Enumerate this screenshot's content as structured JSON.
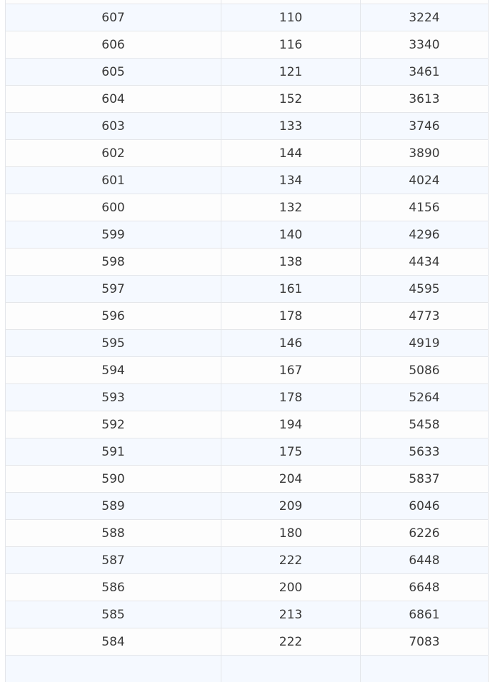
{
  "table": {
    "rows": [
      [
        607,
        110,
        3224
      ],
      [
        606,
        116,
        3340
      ],
      [
        605,
        121,
        3461
      ],
      [
        604,
        152,
        3613
      ],
      [
        603,
        133,
        3746
      ],
      [
        602,
        144,
        3890
      ],
      [
        601,
        134,
        4024
      ],
      [
        600,
        132,
        4156
      ],
      [
        599,
        140,
        4296
      ],
      [
        598,
        138,
        4434
      ],
      [
        597,
        161,
        4595
      ],
      [
        596,
        178,
        4773
      ],
      [
        595,
        146,
        4919
      ],
      [
        594,
        167,
        5086
      ],
      [
        593,
        178,
        5264
      ],
      [
        592,
        194,
        5458
      ],
      [
        591,
        175,
        5633
      ],
      [
        590,
        204,
        5837
      ],
      [
        589,
        209,
        6046
      ],
      [
        588,
        180,
        6226
      ],
      [
        587,
        222,
        6448
      ],
      [
        586,
        200,
        6648
      ],
      [
        585,
        213,
        6861
      ],
      [
        584,
        222,
        7083
      ]
    ]
  }
}
